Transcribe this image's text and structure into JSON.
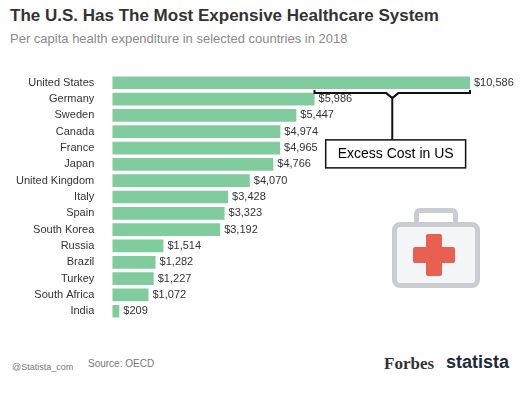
{
  "chart_data": {
    "type": "bar",
    "orientation": "horizontal",
    "title": "The U.S. Has The Most Expensive Healthcare System",
    "subtitle": "Per capita health expenditure in selected countries in 2018",
    "categories": [
      "United States",
      "Germany",
      "Sweden",
      "Canada",
      "France",
      "Japan",
      "United Kingdom",
      "Italy",
      "Spain",
      "South Korea",
      "Russia",
      "Brazil",
      "Turkey",
      "South Africa",
      "India"
    ],
    "values": [
      10586,
      5986,
      5447,
      4974,
      4965,
      4766,
      4070,
      3428,
      3323,
      3192,
      1514,
      1282,
      1227,
      1072,
      209
    ],
    "value_labels": [
      "$10,586",
      "$5,986",
      "$5,447",
      "$4,974",
      "$4,965",
      "$4,766",
      "$4,070",
      "$3,428",
      "$3,323",
      "$3,192",
      "$1,514",
      "$1,282",
      "$1,227",
      "$1,072",
      "$209"
    ],
    "color": "#80cc9c",
    "data_labels": true,
    "tick_labels": "y",
    "grid": false,
    "annotations": [
      {
        "text": "Excess Cost in US",
        "x": [
          5986,
          10586
        ]
      }
    ],
    "source": "Source: OECD",
    "credits": [
      "@Statista_com",
      "Forbes",
      "statista"
    ]
  }
}
